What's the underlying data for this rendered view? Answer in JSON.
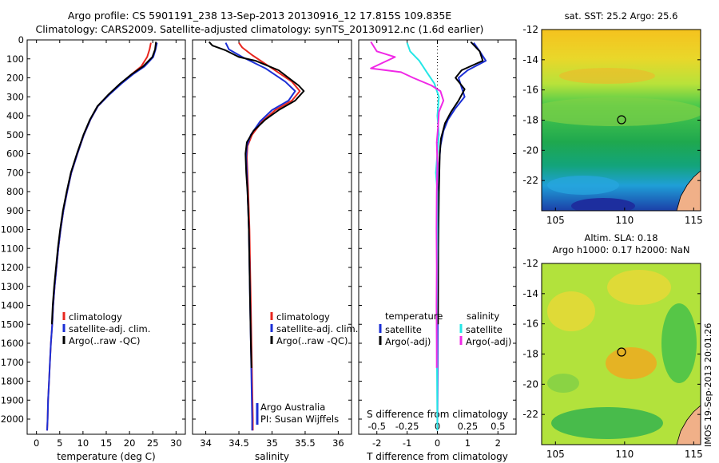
{
  "header": {
    "line1": "Argo profile: CS 5901191_238 13-Sep-2013 20130916_12 17.815S 109.835E",
    "line2": "Climatology: CARS2009. Satellite-adjusted climatology: synTS_20130912.nc (1.6d earlier)"
  },
  "stamp": "IMOS 19-Sep-2013 20:01:26",
  "colors": {
    "climatology": "#e8261e",
    "satellite": "#1b2fd6",
    "argo": "#000000",
    "sat_salinity": "#25e6e6",
    "argo_salinity_adj": "#f028e6"
  },
  "depth_axis": {
    "ticks": [
      0,
      100,
      200,
      300,
      400,
      500,
      600,
      700,
      800,
      900,
      1000,
      1100,
      1200,
      1300,
      1400,
      1500,
      1600,
      1700,
      1800,
      1900,
      2000
    ],
    "ylim": [
      0,
      2080
    ]
  },
  "chart_data": [
    {
      "type": "line",
      "xlabel": "temperature (deg C)",
      "xlim": [
        -2,
        32
      ],
      "xticks": [
        0,
        5,
        10,
        15,
        20,
        25,
        30
      ],
      "legend": {
        "entries": [
          "climatology",
          "satellite-adj. clim.",
          "Argo(..raw -QC)"
        ],
        "placement": "lower-center"
      },
      "series": [
        {
          "name": "climatology",
          "color_key": "climatology",
          "points": [
            [
              24.6,
              15
            ],
            [
              24.3,
              50
            ],
            [
              23.8,
              90
            ],
            [
              22.5,
              140
            ],
            [
              20.5,
              180
            ],
            [
              18.2,
              230
            ],
            [
              15.5,
              290
            ],
            [
              13.2,
              350
            ],
            [
              11.6,
              420
            ],
            [
              10.2,
              500
            ],
            [
              8.8,
              600
            ],
            [
              7.5,
              700
            ],
            [
              6.6,
              800
            ],
            [
              5.8,
              900
            ],
            [
              5.2,
              1000
            ],
            [
              4.7,
              1100
            ],
            [
              4.3,
              1200
            ],
            [
              3.9,
              1300
            ],
            [
              3.6,
              1400
            ],
            [
              3.4,
              1500
            ],
            [
              3.1,
              1600
            ],
            [
              2.9,
              1700
            ],
            [
              2.7,
              1800
            ],
            [
              2.5,
              1900
            ],
            [
              2.4,
              2000
            ],
            [
              2.3,
              2060
            ]
          ]
        },
        {
          "name": "satellite-adj. clim.",
          "color_key": "satellite",
          "points": [
            [
              25.9,
              15
            ],
            [
              25.6,
              50
            ],
            [
              25.1,
              90
            ],
            [
              23.2,
              140
            ],
            [
              20.8,
              180
            ],
            [
              18.3,
              230
            ],
            [
              15.6,
              290
            ],
            [
              13.2,
              350
            ],
            [
              11.6,
              420
            ],
            [
              10.2,
              500
            ],
            [
              8.8,
              600
            ],
            [
              7.5,
              700
            ],
            [
              6.6,
              800
            ],
            [
              5.8,
              900
            ],
            [
              5.2,
              1000
            ],
            [
              4.7,
              1100
            ],
            [
              4.3,
              1200
            ],
            [
              3.9,
              1300
            ],
            [
              3.6,
              1400
            ],
            [
              3.4,
              1500
            ],
            [
              3.1,
              1600
            ],
            [
              2.9,
              1700
            ],
            [
              2.7,
              1800
            ],
            [
              2.5,
              1900
            ],
            [
              2.4,
              2000
            ],
            [
              2.3,
              2060
            ]
          ]
        },
        {
          "name": "Argo(..raw -QC)",
          "color_key": "argo",
          "points": [
            [
              25.7,
              10
            ],
            [
              25.5,
              50
            ],
            [
              24.9,
              90
            ],
            [
              22.9,
              140
            ],
            [
              20.5,
              180
            ],
            [
              18.0,
              230
            ],
            [
              15.4,
              290
            ],
            [
              13.1,
              350
            ],
            [
              11.5,
              420
            ],
            [
              10.1,
              500
            ],
            [
              8.7,
              600
            ],
            [
              7.4,
              700
            ],
            [
              6.5,
              800
            ],
            [
              5.7,
              900
            ],
            [
              5.1,
              1000
            ],
            [
              4.6,
              1100
            ],
            [
              4.2,
              1200
            ],
            [
              3.8,
              1300
            ],
            [
              3.5,
              1400
            ],
            [
              3.3,
              1500
            ]
          ]
        }
      ]
    },
    {
      "type": "line",
      "xlabel": "salinity",
      "xlim": [
        33.8,
        36.2
      ],
      "xticks": [
        34,
        34.5,
        35,
        35.5,
        36
      ],
      "legend": {
        "entries": [
          "climatology",
          "satellite-adj. clim.",
          "Argo(..raw -QC)"
        ],
        "placement": "lower-right"
      },
      "annotation": [
        "Argo Australia",
        "PI: Susan Wijffels"
      ],
      "series": [
        {
          "name": "climatology",
          "color_key": "climatology",
          "points": [
            [
              34.5,
              15
            ],
            [
              34.55,
              40
            ],
            [
              34.7,
              80
            ],
            [
              35.0,
              150
            ],
            [
              35.3,
              220
            ],
            [
              35.42,
              270
            ],
            [
              35.3,
              320
            ],
            [
              35.05,
              370
            ],
            [
              34.85,
              430
            ],
            [
              34.7,
              500
            ],
            [
              34.63,
              560
            ],
            [
              34.62,
              620
            ],
            [
              34.63,
              700
            ],
            [
              34.64,
              800
            ],
            [
              34.65,
              900
            ],
            [
              34.66,
              1000
            ],
            [
              34.67,
              1200
            ],
            [
              34.68,
              1400
            ],
            [
              34.69,
              1600
            ],
            [
              34.7,
              1800
            ],
            [
              34.71,
              2000
            ],
            [
              34.71,
              2060
            ]
          ]
        },
        {
          "name": "satellite-adj. clim.",
          "color_key": "satellite",
          "points": [
            [
              34.3,
              15
            ],
            [
              34.35,
              50
            ],
            [
              34.55,
              90
            ],
            [
              34.9,
              150
            ],
            [
              35.2,
              220
            ],
            [
              35.35,
              270
            ],
            [
              35.25,
              320
            ],
            [
              35.0,
              370
            ],
            [
              34.82,
              430
            ],
            [
              34.68,
              500
            ],
            [
              34.62,
              560
            ],
            [
              34.61,
              620
            ],
            [
              34.62,
              700
            ],
            [
              34.63,
              800
            ],
            [
              34.64,
              900
            ],
            [
              34.65,
              1000
            ],
            [
              34.66,
              1200
            ],
            [
              34.67,
              1400
            ],
            [
              34.68,
              1600
            ],
            [
              34.69,
              1800
            ],
            [
              34.7,
              2000
            ],
            [
              34.7,
              2060
            ]
          ]
        },
        {
          "name": "Argo(..raw -QC)",
          "color_key": "argo",
          "points": [
            [
              34.05,
              10
            ],
            [
              34.1,
              30
            ],
            [
              34.3,
              55
            ],
            [
              34.5,
              90
            ],
            [
              34.75,
              110
            ],
            [
              35.1,
              160
            ],
            [
              35.25,
              200
            ],
            [
              35.4,
              240
            ],
            [
              35.48,
              270
            ],
            [
              35.35,
              320
            ],
            [
              35.1,
              370
            ],
            [
              34.9,
              420
            ],
            [
              34.72,
              480
            ],
            [
              34.62,
              540
            ],
            [
              34.6,
              600
            ],
            [
              34.61,
              700
            ],
            [
              34.63,
              800
            ],
            [
              34.64,
              900
            ],
            [
              34.65,
              1000
            ],
            [
              34.66,
              1200
            ],
            [
              34.67,
              1400
            ],
            [
              34.68,
              1600
            ],
            [
              34.69,
              1730
            ]
          ]
        }
      ]
    },
    {
      "type": "line",
      "xlabel": "T difference from climatology",
      "x2label": "S difference from climatology",
      "xlim": [
        -2.6,
        2.6
      ],
      "xticks": [
        -2,
        -1,
        0,
        1,
        2
      ],
      "x2ticks": [
        "-0.5",
        "-0.25",
        "0",
        "0.25",
        "0.5"
      ],
      "legend": {
        "groups": [
          "temperature",
          "salinity"
        ],
        "entries": [
          "satellite",
          "Argo(-adj)",
          "satellite",
          "Argo(-adj)"
        ],
        "placement": "lower-center"
      },
      "series": [
        {
          "name": "satellite",
          "group": "temperature",
          "color_key": "satellite",
          "points": [
            [
              1.2,
              15
            ],
            [
              1.4,
              60
            ],
            [
              1.6,
              110
            ],
            [
              1.0,
              160
            ],
            [
              0.7,
              200
            ],
            [
              0.8,
              250
            ],
            [
              0.9,
              300
            ],
            [
              0.6,
              360
            ],
            [
              0.35,
              420
            ],
            [
              0.2,
              480
            ],
            [
              0.1,
              560
            ],
            [
              0.06,
              650
            ],
            [
              0.04,
              800
            ],
            [
              0.02,
              1000
            ],
            [
              0.01,
              1500
            ],
            [
              0.0,
              2060
            ]
          ]
        },
        {
          "name": "Argo(-adj)",
          "group": "temperature",
          "color_key": "argo",
          "points": [
            [
              1.1,
              10
            ],
            [
              1.4,
              60
            ],
            [
              1.5,
              110
            ],
            [
              0.8,
              160
            ],
            [
              0.6,
              200
            ],
            [
              0.9,
              260
            ],
            [
              0.7,
              320
            ],
            [
              0.45,
              380
            ],
            [
              0.25,
              440
            ],
            [
              0.12,
              520
            ],
            [
              0.08,
              600
            ],
            [
              0.05,
              800
            ],
            [
              0.03,
              1100
            ],
            [
              0.02,
              1500
            ]
          ]
        },
        {
          "name": "satellite",
          "group": "salinity",
          "color_key": "sat_salinity",
          "points": [
            [
              -1.0,
              15
            ],
            [
              -0.9,
              60
            ],
            [
              -0.6,
              110
            ],
            [
              -0.35,
              170
            ],
            [
              -0.1,
              230
            ],
            [
              0.05,
              300
            ],
            [
              0.0,
              400
            ],
            [
              0.05,
              500
            ],
            [
              0.0,
              600
            ],
            [
              -0.05,
              700
            ],
            [
              0.0,
              800
            ],
            [
              0.0,
              1000
            ],
            [
              -0.02,
              1500
            ],
            [
              0.0,
              2060
            ]
          ]
        },
        {
          "name": "Argo(-adj)",
          "group": "salinity",
          "color_key": "argo_salinity_adj",
          "points": [
            [
              -2.2,
              10
            ],
            [
              -2.0,
              60
            ],
            [
              -1.4,
              90
            ],
            [
              -2.2,
              150
            ],
            [
              -1.2,
              170
            ],
            [
              -0.8,
              200
            ],
            [
              -0.2,
              240
            ],
            [
              0.1,
              270
            ],
            [
              0.2,
              320
            ],
            [
              0.05,
              380
            ],
            [
              0.02,
              460
            ],
            [
              -0.02,
              540
            ],
            [
              0.0,
              650
            ],
            [
              -0.02,
              800
            ],
            [
              -0.03,
              1000
            ],
            [
              -0.02,
              1200
            ],
            [
              -0.03,
              1400
            ],
            [
              -0.02,
              1600
            ],
            [
              -0.02,
              1730
            ]
          ]
        }
      ]
    },
    {
      "type": "heatmap",
      "title": "sat. SST: 25.2  Argo: 25.6",
      "xlim": [
        104,
        115.5
      ],
      "ylim": [
        -24,
        -12
      ],
      "xticks": [
        105,
        110,
        115
      ],
      "yticks": [
        -12,
        -14,
        -16,
        -18,
        -20,
        -22
      ],
      "marker": {
        "lon": 109.835,
        "lat": -17.815
      }
    },
    {
      "type": "heatmap",
      "title": "Altim. SLA: 0.18",
      "subtitle": "Argo h1000: 0.17  h2000: NaN",
      "xlim": [
        104,
        115.5
      ],
      "ylim": [
        -24,
        -12
      ],
      "xticks": [
        105,
        110,
        115
      ],
      "yticks": [
        -12,
        -14,
        -16,
        -18,
        -20,
        -22
      ],
      "marker": {
        "lon": 109.835,
        "lat": -17.815
      }
    }
  ]
}
